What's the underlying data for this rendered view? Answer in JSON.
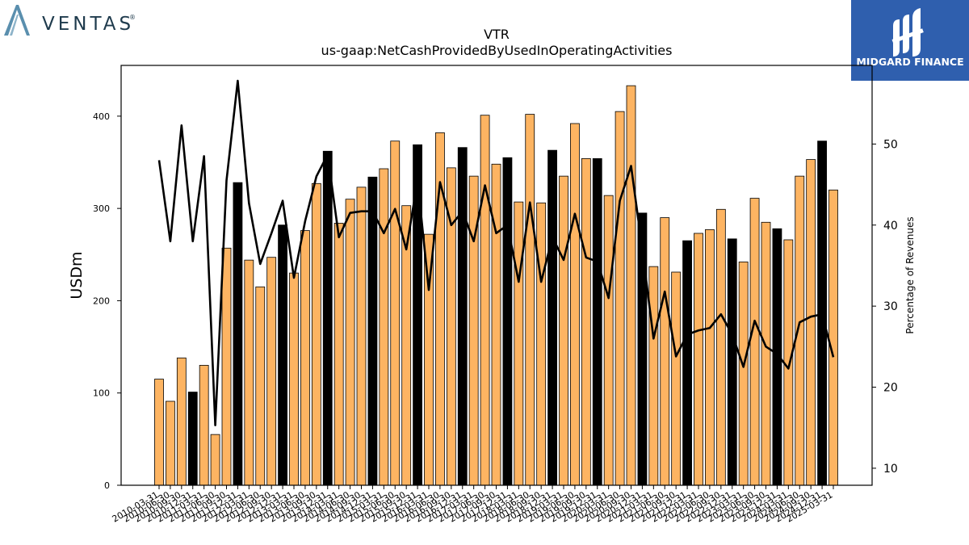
{
  "brand_left": {
    "name": "VENTAS",
    "mark": "®",
    "logo_color": "#5a8fae"
  },
  "brand_right": {
    "name": "MIDGARD FINANCE",
    "background": "#2f5fae"
  },
  "chart_data": {
    "type": "bar",
    "title": "VTR",
    "subtitle": "us-gaap:NetCashProvidedByUsedInOperatingActivities",
    "ylabel": "USDm",
    "y2label": "Percentage of Revenues",
    "ylim": [
      0,
      455
    ],
    "y2lim": [
      7.9,
      59.7
    ],
    "yticks": [
      0,
      100,
      200,
      300,
      400
    ],
    "y2ticks": [
      10,
      20,
      30,
      40,
      50
    ],
    "bar_color": "#fdb462",
    "highlight_color": "#000000",
    "line_color": "#000000",
    "categories": [
      "2010-03-31",
      "2010-06-30",
      "2010-09-30",
      "2010-12-31",
      "2011-03-31",
      "2011-06-30",
      "2011-09-30",
      "2011-12-31",
      "2012-03-31",
      "2012-06-30",
      "2012-09-30",
      "2012-12-31",
      "2013-03-31",
      "2013-06-30",
      "2013-09-30",
      "2013-12-31",
      "2014-03-31",
      "2014-06-30",
      "2014-09-30",
      "2014-12-31",
      "2015-03-31",
      "2015-06-30",
      "2015-09-30",
      "2015-12-31",
      "2016-03-31",
      "2016-06-30",
      "2016-09-30",
      "2016-12-31",
      "2017-03-31",
      "2017-06-30",
      "2017-09-30",
      "2017-12-31",
      "2018-03-31",
      "2018-06-30",
      "2018-09-30",
      "2018-12-31",
      "2019-03-31",
      "2019-06-30",
      "2019-09-30",
      "2019-12-31",
      "2020-03-31",
      "2020-06-30",
      "2020-09-30",
      "2020-12-31",
      "2021-03-31",
      "2021-06-30",
      "2021-09-30",
      "2021-12-31",
      "2022-03-31",
      "2022-06-30",
      "2022-09-30",
      "2022-12-31",
      "2023-03-31",
      "2023-06-30",
      "2023-09-30",
      "2023-12-31",
      "2024-03-31",
      "2024-06-30",
      "2024-09-30",
      "2024-12-31",
      "2025-03-31"
    ],
    "xtick_labels": [
      "2010-03-31",
      "2010-06-30",
      "2010-09-30",
      "2010-12-31",
      "2011-03-31",
      "2011-06-30",
      "2011-09-30",
      "2011-12-31",
      "2012-03-31",
      "2012-06-30",
      "2012-09-30",
      "2012-12-31",
      "2013-03-31",
      "2013-06-30",
      "2013-09-30",
      "2013-12-31",
      "2014-03-31",
      "2014-06-30",
      "2014-09-30",
      "2014-12-31",
      "2015-03-31",
      "2015-06-30",
      "2015-09-30",
      "2015-12-31",
      "2016-03-31",
      "2016-06-30",
      "2016-09-30",
      "2016-12-31",
      "2017-03-31",
      "2017-06-30",
      "2017-09-30",
      "2017-12-31",
      "2018-03-31",
      "2018-06-30",
      "2018-09-30",
      "2018-12-31",
      "2019-03-31",
      "2019-06-30",
      "2019-09-30",
      "2019-12-31",
      "2020-03-31",
      "2020-06-30",
      "2020-09-30",
      "2020-12-31",
      "2021-03-31",
      "2021-06-30",
      "2021-09-30",
      "2021-12-31",
      "2022-03-31",
      "2022-06-30",
      "2022-09-30",
      "2022-12-31",
      "2023-03-31",
      "2023-06-30",
      "2023-09-30",
      "2023-12-31",
      "2024-03-31",
      "2024-06-30",
      "2024-09-30",
      "2024-12-31",
      "2025-03-31"
    ],
    "values": [
      115,
      91,
      138,
      101,
      130,
      55,
      257,
      328,
      244,
      215,
      247,
      282,
      230,
      276,
      327,
      362,
      284,
      310,
      323,
      334,
      343,
      373,
      303,
      369,
      272,
      382,
      344,
      366,
      335,
      401,
      348,
      355,
      307,
      402,
      306,
      363,
      335,
      392,
      354,
      354,
      314,
      405,
      433,
      295,
      237,
      290,
      231,
      265,
      273,
      277,
      299,
      267,
      242,
      311,
      285,
      278,
      266,
      335,
      353,
      373,
      320
    ],
    "highlight": [
      false,
      false,
      false,
      true,
      false,
      false,
      false,
      true,
      false,
      false,
      false,
      true,
      false,
      false,
      false,
      true,
      false,
      false,
      false,
      true,
      false,
      false,
      false,
      true,
      false,
      false,
      false,
      true,
      false,
      false,
      false,
      true,
      false,
      false,
      false,
      true,
      false,
      false,
      false,
      true,
      false,
      false,
      false,
      true,
      false,
      false,
      false,
      true,
      false,
      false,
      false,
      true,
      false,
      false,
      false,
      true,
      false,
      false,
      false,
      true,
      false
    ],
    "pct_of_revenues": [
      48,
      38,
      52.3,
      38,
      48.5,
      15.3,
      45.5,
      57.8,
      42.7,
      35.2,
      39,
      43,
      33.5,
      40.5,
      46,
      48.7,
      38.5,
      41.5,
      41.7,
      41.7,
      39,
      42,
      37,
      45.5,
      32,
      45.3,
      40,
      41.7,
      38,
      44.9,
      39,
      40,
      33,
      42.8,
      33,
      38.5,
      35.7,
      41.4,
      36,
      35.5,
      31,
      43,
      47.3,
      37,
      26,
      31.8,
      23.8,
      26.5,
      27,
      27.3,
      29,
      26.5,
      22.5,
      28.2,
      25,
      24.1,
      22.3,
      28,
      28.7,
      29,
      23.7
    ]
  }
}
